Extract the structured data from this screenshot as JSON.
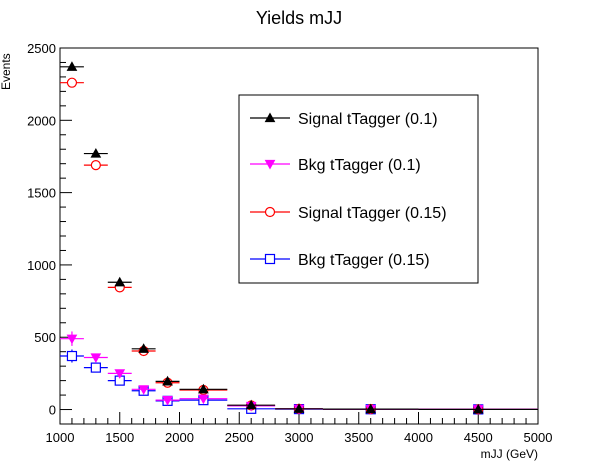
{
  "chart_data": {
    "type": "scatter",
    "title": "Yields mJJ",
    "xlabel": "mJJ (GeV)",
    "ylabel": "Events",
    "xlim": [
      1000,
      5000
    ],
    "ylim": [
      -100,
      2500
    ],
    "x_ticks": [
      1000,
      1500,
      2000,
      2500,
      3000,
      3500,
      4000,
      4500,
      5000
    ],
    "y_ticks": [
      0,
      500,
      1000,
      1500,
      2000,
      2500
    ],
    "grid": false,
    "legend_position": "right-center",
    "series": [
      {
        "name": "Signal tTagger (0.1)",
        "color": "#000000",
        "marker": "triangle-up-filled",
        "points": [
          {
            "x": 1100,
            "xlo": 1000,
            "xhi": 1200,
            "y": 2370
          },
          {
            "x": 1300,
            "xlo": 1200,
            "xhi": 1400,
            "y": 1770
          },
          {
            "x": 1500,
            "xlo": 1400,
            "xhi": 1600,
            "y": 880
          },
          {
            "x": 1700,
            "xlo": 1600,
            "xhi": 1800,
            "y": 420
          },
          {
            "x": 1900,
            "xlo": 1800,
            "xhi": 2000,
            "y": 195
          },
          {
            "x": 2200,
            "xlo": 2000,
            "xhi": 2400,
            "y": 140
          },
          {
            "x": 2600,
            "xlo": 2400,
            "xhi": 2800,
            "y": 30
          },
          {
            "x": 3000,
            "xlo": 2800,
            "xhi": 3200,
            "y": 5
          },
          {
            "x": 3600,
            "xlo": 3200,
            "xhi": 4000,
            "y": 3
          },
          {
            "x": 4500,
            "xlo": 4000,
            "xhi": 5000,
            "y": 1
          }
        ]
      },
      {
        "name": "Bkg tTagger (0.1)",
        "color": "#ff00ff",
        "marker": "triangle-down-filled",
        "points": [
          {
            "x": 1100,
            "xlo": 1000,
            "xhi": 1200,
            "y": 490,
            "ylo": 440,
            "yhi": 540
          },
          {
            "x": 1300,
            "xlo": 1200,
            "xhi": 1400,
            "y": 360
          },
          {
            "x": 1500,
            "xlo": 1400,
            "xhi": 1600,
            "y": 250
          },
          {
            "x": 1700,
            "xlo": 1600,
            "xhi": 1800,
            "y": 140
          },
          {
            "x": 1900,
            "xlo": 1800,
            "xhi": 2000,
            "y": 65
          },
          {
            "x": 2200,
            "xlo": 2000,
            "xhi": 2400,
            "y": 75
          },
          {
            "x": 2600,
            "xlo": 2400,
            "xhi": 2800,
            "y": 25
          },
          {
            "x": 3000,
            "xlo": 2800,
            "xhi": 3200,
            "y": 5
          },
          {
            "x": 3600,
            "xlo": 3200,
            "xhi": 4000,
            "y": 3
          },
          {
            "x": 4500,
            "xlo": 4000,
            "xhi": 5000,
            "y": 2
          }
        ]
      },
      {
        "name": "Signal tTagger (0.15)",
        "color": "#ff0000",
        "marker": "circle-open",
        "points": [
          {
            "x": 1100,
            "xlo": 1000,
            "xhi": 1200,
            "y": 2260
          },
          {
            "x": 1300,
            "xlo": 1200,
            "xhi": 1400,
            "y": 1690
          },
          {
            "x": 1500,
            "xlo": 1400,
            "xhi": 1600,
            "y": 845
          },
          {
            "x": 1700,
            "xlo": 1600,
            "xhi": 1800,
            "y": 405
          },
          {
            "x": 1900,
            "xlo": 1800,
            "xhi": 2000,
            "y": 185
          },
          {
            "x": 2200,
            "xlo": 2000,
            "xhi": 2400,
            "y": 135
          },
          {
            "x": 2600,
            "xlo": 2400,
            "xhi": 2800,
            "y": 28
          },
          {
            "x": 3000,
            "xlo": 2800,
            "xhi": 3200,
            "y": 5
          },
          {
            "x": 3600,
            "xlo": 3200,
            "xhi": 4000,
            "y": 3
          },
          {
            "x": 4500,
            "xlo": 4000,
            "xhi": 5000,
            "y": 1
          }
        ]
      },
      {
        "name": "Bkg tTagger (0.15)",
        "color": "#0000ff",
        "marker": "square-open",
        "points": [
          {
            "x": 1100,
            "xlo": 1000,
            "xhi": 1200,
            "y": 370,
            "ylo": 325,
            "yhi": 415
          },
          {
            "x": 1300,
            "xlo": 1200,
            "xhi": 1400,
            "y": 290
          },
          {
            "x": 1500,
            "xlo": 1400,
            "xhi": 1600,
            "y": 200
          },
          {
            "x": 1700,
            "xlo": 1600,
            "xhi": 1800,
            "y": 130
          },
          {
            "x": 1900,
            "xlo": 1800,
            "xhi": 2000,
            "y": 60
          },
          {
            "x": 2200,
            "xlo": 2000,
            "xhi": 2400,
            "y": 65
          },
          {
            "x": 2600,
            "xlo": 2400,
            "xhi": 2800,
            "y": 5
          },
          {
            "x": 3000,
            "xlo": 2800,
            "xhi": 3200,
            "y": 3
          },
          {
            "x": 3600,
            "xlo": 3200,
            "xhi": 4000,
            "y": 2
          },
          {
            "x": 4500,
            "xlo": 4000,
            "xhi": 5000,
            "y": 1
          }
        ]
      }
    ]
  }
}
